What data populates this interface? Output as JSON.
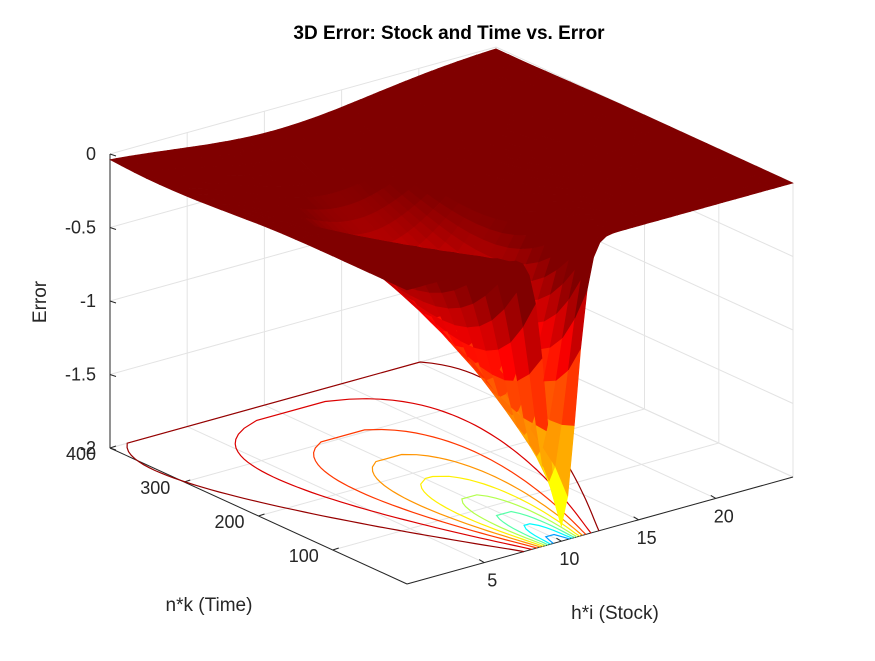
{
  "chart_data": {
    "type": "surface",
    "title": "3D Error: Stock and Time vs. Error",
    "xlabel": "h*i (Stock)",
    "ylabel": "n*k (Time)",
    "zlabel": "Error",
    "xlim": [
      0,
      25
    ],
    "ylim": [
      0,
      400
    ],
    "zlim": [
      -2,
      0
    ],
    "xticks": [
      "5",
      "10",
      "15",
      "20"
    ],
    "yticks": [
      "100",
      "200",
      "300",
      "400"
    ],
    "zticks": [
      "0",
      "-0.5",
      "-1",
      "-1.5",
      "-2"
    ],
    "grid": true,
    "colormap": "jet",
    "surface": {
      "flat_value": 0,
      "trough_center_stock": 10,
      "min_error_at_time_0": -1.9,
      "error_at_time_400": -0.15,
      "contour_projection_on_floor": true
    }
  }
}
